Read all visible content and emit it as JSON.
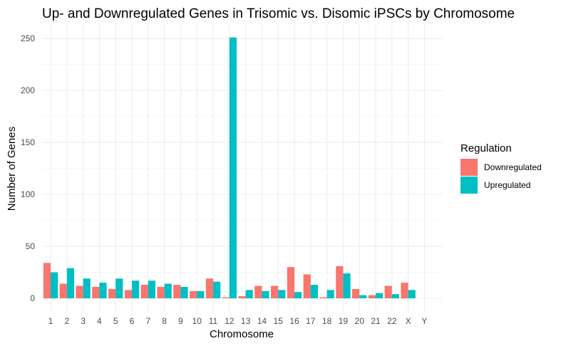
{
  "chart_data": {
    "type": "bar",
    "title": "Up- and Downregulated Genes in Trisomic vs. Disomic iPSCs by Chromosome",
    "xlabel": "Chromosome",
    "ylabel": "Number of Genes",
    "ylim": [
      0,
      260
    ],
    "yticks": [
      0,
      50,
      100,
      150,
      200,
      250
    ],
    "grid": true,
    "legend_position": "right",
    "legend_title": "Regulation",
    "categories": [
      "1",
      "2",
      "3",
      "4",
      "5",
      "6",
      "7",
      "8",
      "9",
      "10",
      "11",
      "12",
      "13",
      "14",
      "15",
      "16",
      "17",
      "18",
      "19",
      "20",
      "21",
      "22",
      "X",
      "Y"
    ],
    "series": [
      {
        "name": "Downregulated",
        "color": "#F8766D",
        "values": [
          34,
          14,
          12,
          11,
          9,
          8,
          13,
          11,
          13,
          7,
          19,
          1,
          2,
          12,
          12,
          30,
          23,
          1,
          31,
          9,
          3,
          12,
          15,
          0
        ]
      },
      {
        "name": "Upregulated",
        "color": "#00BFC4",
        "values": [
          25,
          29,
          19,
          15,
          19,
          17,
          17,
          14,
          11,
          7,
          16,
          251,
          8,
          7,
          8,
          6,
          13,
          8,
          24,
          3,
          5,
          4,
          8,
          0
        ]
      }
    ]
  }
}
